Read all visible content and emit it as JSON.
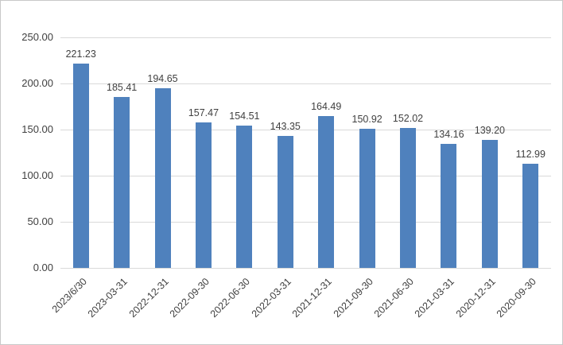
{
  "chart_data": {
    "type": "bar",
    "title": "",
    "xlabel": "",
    "ylabel": "",
    "categories": [
      "2023/6/30",
      "2023-03-31",
      "2022-12-31",
      "2022-09-30",
      "2022-06-30",
      "2022-03-31",
      "2021-12-31",
      "2021-09-30",
      "2021-06-30",
      "2021-03-31",
      "2020-12-31",
      "2020-09-30"
    ],
    "values": [
      221.23,
      185.41,
      194.65,
      157.47,
      154.51,
      143.35,
      164.49,
      150.92,
      152.02,
      134.16,
      139.2,
      112.99
    ],
    "value_labels": [
      "221.23",
      "185.41",
      "194.65",
      "157.47",
      "154.51",
      "143.35",
      "164.49",
      "150.92",
      "152.02",
      "134.16",
      "139.20",
      "112.99"
    ],
    "y_ticks": [
      0,
      50,
      100,
      150,
      200,
      250
    ],
    "y_tick_labels": [
      "0.00",
      "50.00",
      "100.00",
      "150.00",
      "200.00",
      "250.00"
    ],
    "ylim": [
      0,
      250
    ],
    "grid": true,
    "legend_position": "none",
    "bar_color": "#4f81bd",
    "gridline_color": "#d9d9d9",
    "label_color": "#404040"
  }
}
